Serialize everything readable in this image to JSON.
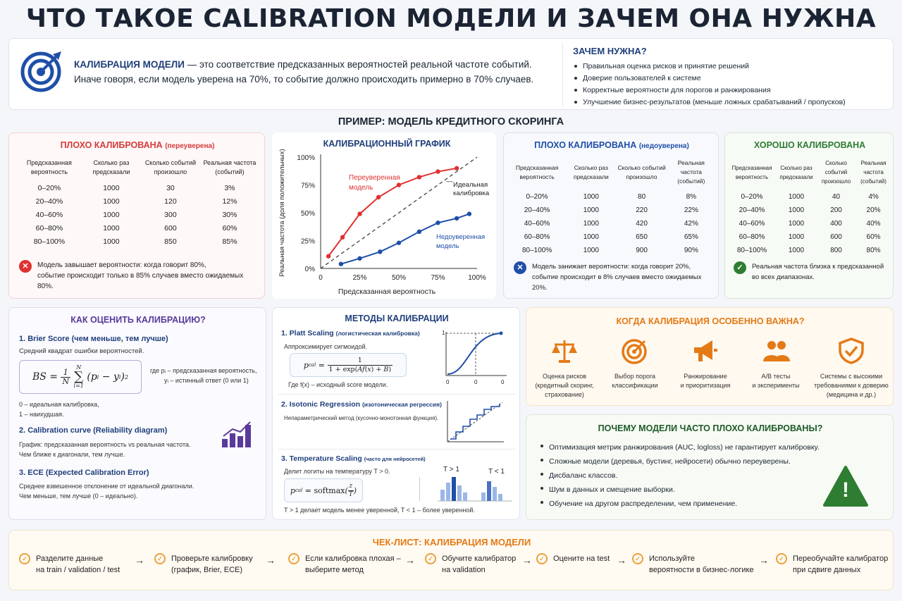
{
  "title": "ЧТО ТАКОЕ CALIBRATION МОДЕЛИ И ЗАЧЕМ ОНА НУЖНА",
  "intro": {
    "lead": "КАЛИБРАЦИЯ МОДЕЛИ",
    "line1": " — это соответствие предсказанных вероятностей реальной частоте событий.",
    "line2": "Иначе говоря, если модель уверена на 70%, то событие должно происходить примерно в 70% случаев."
  },
  "why": {
    "title": "ЗАЧЕМ НУЖНА?",
    "items": [
      "Правильная оценка рисков и принятие решений",
      "Доверие пользователей к системе",
      "Корректные вероятности для порогов и ранжирования",
      "Улучшение бизнес-результатов (меньше ложных срабатываний / пропусков)"
    ]
  },
  "example_title": "ПРИМЕР: МОДЕЛЬ КРЕДИТНОГО СКОРИНГА",
  "headers": [
    "Предсказанная вероятность",
    "Сколько раз предсказали",
    "Сколько событий произошло",
    "Реальная частота (событий)"
  ],
  "over": {
    "title": "ПЛОХО КАЛИБРОВАНА",
    "sub": "(переуверена)",
    "rows": [
      [
        "0–20%",
        "1000",
        "30",
        "3%"
      ],
      [
        "20–40%",
        "1000",
        "120",
        "12%"
      ],
      [
        "40–60%",
        "1000",
        "300",
        "30%"
      ],
      [
        "60–80%",
        "1000",
        "600",
        "60%"
      ],
      [
        "80–100%",
        "1000",
        "850",
        "85%"
      ]
    ],
    "note1": "Модель завышает вероятности: когда говорит 80%,",
    "note2": "событие происходит только в 85% случаев вместо ожидаемых 80%.",
    "icon": "✕"
  },
  "under": {
    "title": "ПЛОХО КАЛИБРОВАНА",
    "sub": "(недоуверена)",
    "rows": [
      [
        "0–20%",
        "1000",
        "80",
        "8%"
      ],
      [
        "20–40%",
        "1000",
        "220",
        "22%"
      ],
      [
        "40–60%",
        "1000",
        "420",
        "42%"
      ],
      [
        "60–80%",
        "1000",
        "650",
        "65%"
      ],
      [
        "80–100%",
        "1000",
        "900",
        "90%"
      ]
    ],
    "note1": "Модель занижает вероятности: когда говорит 20%,",
    "note2": "событие происходит в 8% случаев вместо ожидаемых 20%.",
    "icon": "✕"
  },
  "good": {
    "title": "ХОРОШО КАЛИБРОВАНА",
    "rows": [
      [
        "0–20%",
        "1000",
        "40",
        "4%"
      ],
      [
        "20–40%",
        "1000",
        "200",
        "20%"
      ],
      [
        "40–60%",
        "1000",
        "400",
        "40%"
      ],
      [
        "60–80%",
        "1000",
        "600",
        "60%"
      ],
      [
        "80–100%",
        "1000",
        "800",
        "80%"
      ]
    ],
    "note1": "Реальная частота близка к предсказанной",
    "note2": "во всех диапазонах.",
    "icon": "✓"
  },
  "chart_data": {
    "type": "line",
    "title": "КАЛИБРАЦИОННЫЙ ГРАФИК",
    "xlabel": "Предсказанная вероятность",
    "ylabel": "Реальная частота (доля положительных)",
    "xlim": [
      0,
      1
    ],
    "ylim": [
      0,
      1
    ],
    "xticks": [
      "0",
      "25%",
      "50%",
      "75%",
      "100%"
    ],
    "yticks": [
      "0%",
      "25%",
      "50%",
      "75%",
      "100%"
    ],
    "series": [
      {
        "name": "Переуверенная модель",
        "color": "#e03131",
        "x": [
          0.05,
          0.14,
          0.25,
          0.37,
          0.5,
          0.63,
          0.75,
          0.87
        ],
        "y": [
          0.11,
          0.28,
          0.49,
          0.64,
          0.75,
          0.82,
          0.87,
          0.9
        ]
      },
      {
        "name": "Недоуверенная модель",
        "color": "#1f4fa8",
        "x": [
          0.13,
          0.25,
          0.38,
          0.5,
          0.63,
          0.75,
          0.87,
          0.95
        ],
        "y": [
          0.04,
          0.09,
          0.15,
          0.23,
          0.33,
          0.41,
          0.45,
          0.49
        ]
      },
      {
        "name": "Идеальная калибровка",
        "color": "#333333",
        "x": [
          0,
          1
        ],
        "y": [
          0,
          1
        ]
      }
    ],
    "labels": {
      "over1": "Переуверенная",
      "over2": "модель",
      "ideal1": "Идеальная",
      "ideal2": "калибровка",
      "under1": "Недоуверенная",
      "under2": "модель"
    }
  },
  "assess": {
    "title": "КАК ОЦЕНИТЬ КАЛИБРАЦИЮ?",
    "brier_title": "1. Brier Score (чем меньше, тем лучше)",
    "brier_desc": "Средний квадрат ошибки вероятностей.",
    "where1": "где pᵢ – предсказанная вероятность,",
    "where2": "yᵢ – истинный ответ (0 или 1)",
    "range1": "0 – идеальная калибровка,",
    "range2": "1 – наихудшая.",
    "curve_title": "2. Calibration curve (Reliability diagram)",
    "curve_desc1": "График: предсказанная вероятность vs реальная частота.",
    "curve_desc2": "Чем ближе к диагонали, тем лучше.",
    "ece_title": "3. ECE (Expected Calibration Error)",
    "ece_desc1": "Среднее взвешенное отклонение от идеальной диагонали.",
    "ece_desc2": "Чем меньше, тем лучше (0 – идеально)."
  },
  "methods": {
    "title": "МЕТОДЫ КАЛИБРАЦИИ",
    "platt_title": "1. Platt Scaling",
    "platt_sub": "(логистическая калибровка)",
    "platt_desc": "Аппроксимирует сигмоидой.",
    "platt_where": "Где f(x) – исходный score модели.",
    "iso_title": "2. Isotonic Regression",
    "iso_sub": "(изотоническая регрессия)",
    "iso_desc": "Непараметрический метод (кусочно-монотонная функция).",
    "temp_title": "3. Temperature Scaling",
    "temp_sub": "(часто для нейросетей)",
    "temp_desc": "Делит логиты на температуру T > 0.",
    "temp_note": "T > 1 делает модель менее уверенной, T < 1 – более уверенной.",
    "tgt": "T > 1",
    "tlt": "T < 1"
  },
  "important": {
    "title": "КОГДА КАЛИБРАЦИЯ ОСОБЕННО ВАЖНА?",
    "items": [
      {
        "icon": "scales-icon",
        "l1": "Оценка рисков",
        "l2": "(кредитный скоринг,",
        "l3": "страхование)"
      },
      {
        "icon": "target-icon",
        "l1": "Выбор порога",
        "l2": "классификации",
        "l3": ""
      },
      {
        "icon": "megaphone-icon",
        "l1": "Ранжирование",
        "l2": "и приоритизация",
        "l3": ""
      },
      {
        "icon": "users-icon",
        "l1": "A/B тесты",
        "l2": "и эксперименты",
        "l3": ""
      },
      {
        "icon": "shield-icon",
        "l1": "Системы с высокими",
        "l2": "требованиями к доверию",
        "l3": "(медицина и др.)"
      }
    ]
  },
  "reasons": {
    "title": "ПОЧЕМУ МОДЕЛИ ЧАСТО ПЛОХО КАЛИБРОВАНЫ?",
    "items": [
      "Оптимизация метрик ранжирования (AUC, logloss) не гарантирует калибровку.",
      "Сложные модели (деревья, бустинг, нейросети) обычно переуверены.",
      "Дисбаланс классов.",
      "Шум в данных и смещение выборки.",
      "Обучение на другом распределении, чем применение."
    ],
    "warn": "!"
  },
  "checklist": {
    "title": "ЧЕК-ЛИСТ: КАЛИБРАЦИЯ МОДЕЛИ",
    "steps": [
      {
        "l1": "Разделите данные",
        "l2": "на train / validation / test"
      },
      {
        "l1": "Проверьте калибровку",
        "l2": "(график, Brier, ECE)"
      },
      {
        "l1": "Если калибровка плохая –",
        "l2": "выберите метод"
      },
      {
        "l1": "Обучите калибратор",
        "l2": "на validation"
      },
      {
        "l1": "Оцените на test",
        "l2": ""
      },
      {
        "l1": "Используйте",
        "l2": "вероятности в бизнес-логике"
      },
      {
        "l1": "Переобучайте калибратор",
        "l2": "при сдвиге данных"
      }
    ],
    "arrow": "→",
    "check": "✓"
  }
}
